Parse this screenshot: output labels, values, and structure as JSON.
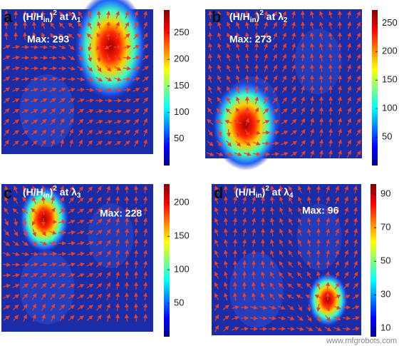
{
  "panels": [
    {
      "label": "a",
      "title": {
        "open": "(H/H",
        "sub": "in",
        "close": ")",
        "sup": "2",
        "at": " at λ",
        "index": "1"
      },
      "max_label": "Max: 293",
      "colorbar": {
        "ylim": [
          0,
          293
        ],
        "yticks": [
          50,
          100,
          150,
          200,
          250
        ]
      }
    },
    {
      "label": "b",
      "title": {
        "open": "(H/H",
        "sub": "in",
        "close": ")",
        "sup": "2",
        "at": " at λ",
        "index": "2"
      },
      "max_label": "Max: 273",
      "colorbar": {
        "ylim": [
          0,
          273
        ],
        "yticks": [
          50,
          100,
          150,
          200,
          250
        ]
      }
    },
    {
      "label": "c",
      "title": {
        "open": "(H/H",
        "sub": "in",
        "close": ")",
        "sup": "2",
        "at": " at λ",
        "index": "3"
      },
      "max_label": "Max: 228",
      "colorbar": {
        "ylim": [
          0,
          228
        ],
        "yticks": [
          50,
          100,
          150,
          200
        ]
      }
    },
    {
      "label": "d",
      "title": {
        "open": "(H/H",
        "sub": "in",
        "close": ")",
        "sup": "2",
        "at": " at λ",
        "index": "4"
      },
      "max_label": "Max: 96",
      "colorbar": {
        "ylim": [
          5,
          96
        ],
        "yticks": [
          10,
          30,
          50,
          70,
          90
        ]
      }
    }
  ],
  "watermark": "www.mfgrobots.com"
}
